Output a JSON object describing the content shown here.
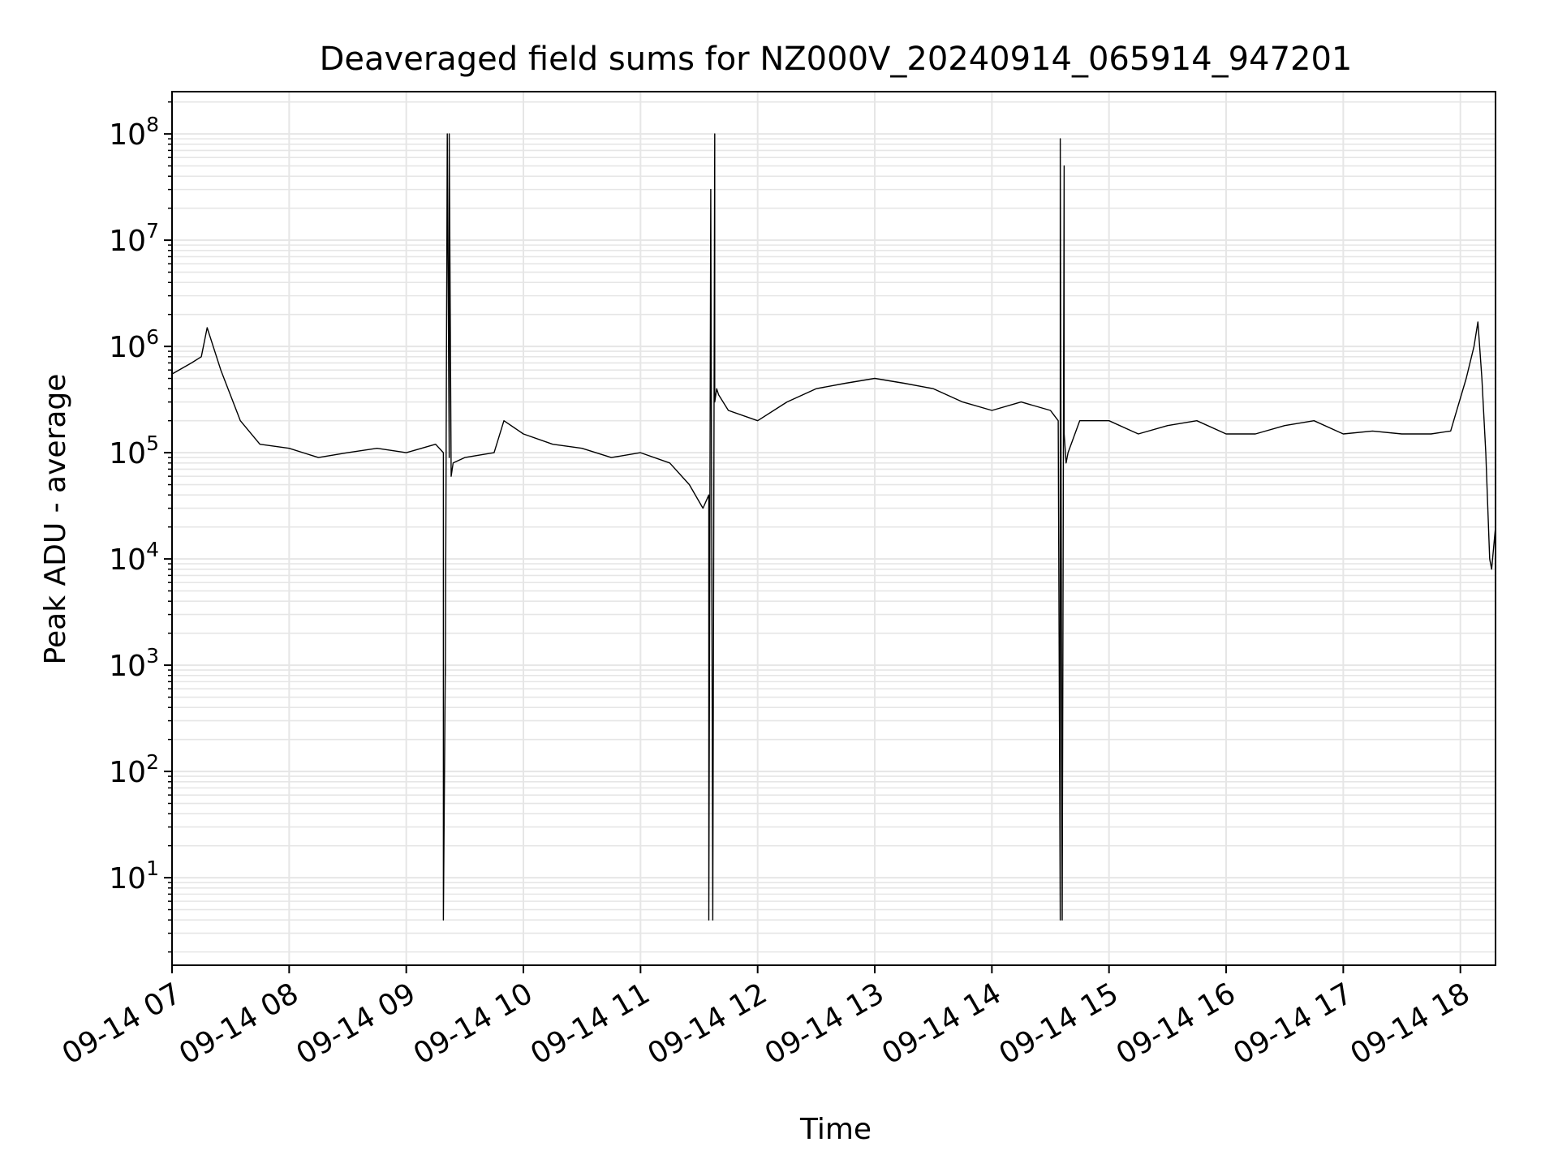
{
  "chart_data": {
    "type": "line",
    "title": "Deaveraged field sums for NZ000V_20240914_065914_947201",
    "xlabel": "Time",
    "ylabel": "Peak ADU - average",
    "yscale": "log",
    "xlim": [
      "2024-09-14 07:00",
      "2024-09-14 18:18"
    ],
    "ylim": [
      1.5,
      250000000
    ],
    "grid": true,
    "grid_color": "#e6e6e6",
    "line_color": "#000000",
    "x_tick_labels": [
      "09-14 07",
      "09-14 08",
      "09-14 09",
      "09-14 10",
      "09-14 11",
      "09-14 12",
      "09-14 13",
      "09-14 14",
      "09-14 15",
      "09-14 16",
      "09-14 17",
      "09-14 18"
    ],
    "x_tick_times": [
      "2024-09-14 07:00",
      "2024-09-14 08:00",
      "2024-09-14 09:00",
      "2024-09-14 10:00",
      "2024-09-14 11:00",
      "2024-09-14 12:00",
      "2024-09-14 13:00",
      "2024-09-14 14:00",
      "2024-09-14 15:00",
      "2024-09-14 16:00",
      "2024-09-14 17:00",
      "2024-09-14 18:00"
    ],
    "y_tick_exponents": [
      1,
      2,
      3,
      4,
      5,
      6,
      7,
      8
    ],
    "series": [
      {
        "x": [
          "2024-09-14 07:00",
          "2024-09-14 07:10",
          "2024-09-14 07:15",
          "2024-09-14 07:18",
          "2024-09-14 07:25",
          "2024-09-14 07:35",
          "2024-09-14 07:45",
          "2024-09-14 08:00",
          "2024-09-14 08:15",
          "2024-09-14 08:30",
          "2024-09-14 08:45",
          "2024-09-14 09:00",
          "2024-09-14 09:15",
          "2024-09-14 09:19",
          "2024-09-14 09:19",
          "2024-09-14 09:20",
          "2024-09-14 09:20",
          "2024-09-14 09:21",
          "2024-09-14 09:22",
          "2024-09-14 09:22",
          "2024-09-14 09:23",
          "2024-09-14 09:24",
          "2024-09-14 09:30",
          "2024-09-14 09:45",
          "2024-09-14 09:50",
          "2024-09-14 10:00",
          "2024-09-14 10:15",
          "2024-09-14 10:30",
          "2024-09-14 10:45",
          "2024-09-14 11:00",
          "2024-09-14 11:15",
          "2024-09-14 11:25",
          "2024-09-14 11:32",
          "2024-09-14 11:35",
          "2024-09-14 11:35",
          "2024-09-14 11:36",
          "2024-09-14 11:37",
          "2024-09-14 11:38",
          "2024-09-14 11:38",
          "2024-09-14 11:39",
          "2024-09-14 11:40",
          "2024-09-14 11:45",
          "2024-09-14 12:00",
          "2024-09-14 12:15",
          "2024-09-14 12:30",
          "2024-09-14 12:45",
          "2024-09-14 13:00",
          "2024-09-14 13:15",
          "2024-09-14 13:30",
          "2024-09-14 13:45",
          "2024-09-14 14:00",
          "2024-09-14 14:15",
          "2024-09-14 14:30",
          "2024-09-14 14:34",
          "2024-09-14 14:35",
          "2024-09-14 14:35",
          "2024-09-14 14:36",
          "2024-09-14 14:37",
          "2024-09-14 14:37",
          "2024-09-14 14:38",
          "2024-09-14 14:39",
          "2024-09-14 14:45",
          "2024-09-14 15:00",
          "2024-09-14 15:15",
          "2024-09-14 15:30",
          "2024-09-14 15:45",
          "2024-09-14 16:00",
          "2024-09-14 16:15",
          "2024-09-14 16:30",
          "2024-09-14 16:45",
          "2024-09-14 17:00",
          "2024-09-14 17:15",
          "2024-09-14 17:30",
          "2024-09-14 17:45",
          "2024-09-14 17:55",
          "2024-09-14 18:03",
          "2024-09-14 18:07",
          "2024-09-14 18:09",
          "2024-09-14 18:11",
          "2024-09-14 18:13",
          "2024-09-14 18:15",
          "2024-09-14 18:16",
          "2024-09-14 18:18"
        ],
        "y": [
          550000,
          700000,
          800000,
          1500000,
          600000,
          200000,
          120000,
          110000,
          90000,
          100000,
          110000,
          100000,
          120000,
          100000,
          4,
          1000,
          800,
          100000000,
          90000,
          100000000,
          60000,
          80000,
          90000,
          100000,
          200000,
          150000,
          120000,
          110000,
          90000,
          100000,
          80000,
          50000,
          30000,
          40000,
          4,
          30000000,
          4,
          100000000,
          300000,
          400000,
          350000,
          250000,
          200000,
          300000,
          400000,
          450000,
          500000,
          450000,
          400000,
          300000,
          250000,
          300000,
          250000,
          200000,
          4,
          90000000,
          4,
          50000000,
          150000,
          80000,
          100000,
          200000,
          200000,
          150000,
          180000,
          200000,
          150000,
          150000,
          180000,
          200000,
          150000,
          160000,
          150000,
          150000,
          160000,
          500000,
          1000000,
          1700000,
          500000,
          100000,
          10000,
          8000,
          20000
        ]
      }
    ]
  }
}
